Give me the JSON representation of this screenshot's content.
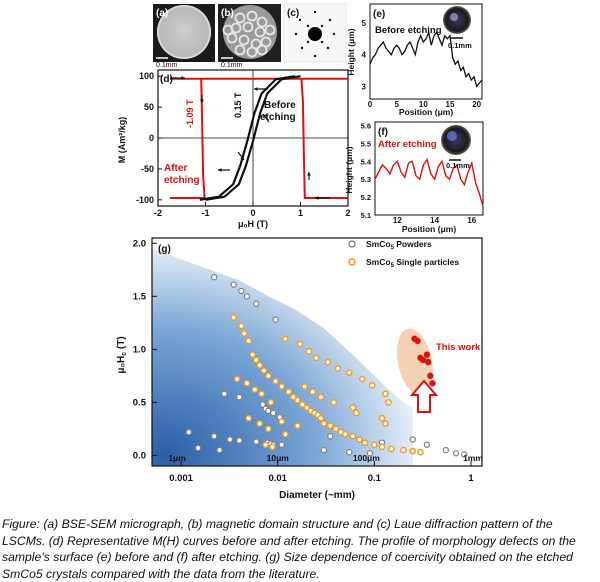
{
  "panels": {
    "a": {
      "label": "(a)",
      "scale": "0.1mm"
    },
    "b": {
      "label": "(b)",
      "scale": "0.1mm"
    },
    "c": {
      "label": "(c)"
    },
    "d": {
      "label": "(d)",
      "ylabel": "M (Am²/kg)",
      "xlabel": "μ₀H (T)",
      "xticks": [
        "-2",
        "-1",
        "0",
        "1",
        "2"
      ],
      "yticks": [
        "100",
        "50",
        "0",
        "-50",
        "-100"
      ],
      "annot_before": "Before",
      "annot_before2": "etching",
      "annot_after": "After",
      "annot_after2": "etching",
      "annot_015": "0.15 T",
      "annot_109": "-1.09 T"
    },
    "e": {
      "label": "(e)",
      "title": "Before etching",
      "scale": "0.1mm",
      "ylabel": "Height (μm)",
      "xlabel": "Position (μm)",
      "xticks": [
        "0",
        "5",
        "10",
        "15",
        "20"
      ],
      "yticks": [
        "5",
        "4",
        "3"
      ]
    },
    "f": {
      "label": "(f)",
      "title": "After etching",
      "scale": "0.1mm",
      "ylabel": "Height (μm)",
      "xlabel": "Position (μm)",
      "xticks": [
        "12",
        "14",
        "16"
      ],
      "yticks": [
        "5.6",
        "5.5",
        "5.4",
        "5.3",
        "5.2",
        "5.1"
      ]
    },
    "g": {
      "label": "(g)",
      "ylabel": "μ₀H",
      "ylabel_sub": "c",
      "ylabel_unit": " (T)",
      "xlabel": "Diameter (~mm)",
      "xticks": [
        "0.001",
        "0.01",
        "0.1",
        "1"
      ],
      "yticks": [
        "2.0",
        "1.5",
        "1.0",
        "0.5",
        "0.0"
      ],
      "size_labels": [
        "1μm",
        "10μm",
        "100μm",
        "1mm"
      ],
      "legend1": "SmCo",
      "legend1_sub": "5",
      "legend1_rest": " Powders",
      "legend2": "SmCo",
      "legend2_sub": "5",
      "legend2_rest": " Single particles",
      "this_work": "This work"
    }
  },
  "colors": {
    "red": "#e01010",
    "orange": "#f39c1f",
    "gray": "#808080",
    "blue": "#2a6cb8"
  },
  "chart_data": [
    {
      "panel": "d",
      "type": "line",
      "xlim": [
        -2,
        2
      ],
      "ylim": [
        -110,
        110
      ],
      "series": [
        {
          "color": "red",
          "x": [
            -1.75,
            -1.13,
            -1.11,
            -1.09,
            -1.0,
            1.0,
            1.09,
            1.11,
            1.13,
            2.0
          ],
          "y_upper": [
            96,
            96,
            60,
            -50,
            -97,
            -97,
            -97,
            -97,
            -97,
            -97
          ],
          "closed": true
        },
        {
          "color": "black",
          "x": [
            -1.0,
            -0.6,
            -0.3,
            -0.15,
            0,
            0.15,
            0.3,
            0.6,
            1.0
          ],
          "y": [
            -100,
            -95,
            -75,
            -45,
            -5,
            40,
            72,
            95,
            100
          ]
        }
      ]
    },
    {
      "panel": "e",
      "type": "line",
      "xlim": [
        0,
        21
      ],
      "ylim": [
        2.6,
        5.6
      ],
      "x": [
        0,
        0.5,
        1,
        1.5,
        2,
        2.5,
        3,
        3.5,
        4,
        4.5,
        5,
        5.5,
        6,
        6.5,
        7,
        7.5,
        8,
        8.5,
        9,
        9.5,
        10,
        10.5,
        11,
        11.5,
        12,
        12.5,
        13,
        13.5,
        14,
        14.5,
        15,
        15.5,
        16,
        16.5,
        17,
        17.5,
        18,
        18.5,
        19,
        19.5,
        20,
        20.5,
        21
      ],
      "y": [
        3.7,
        3.9,
        4.0,
        4.2,
        4.3,
        4.4,
        4.2,
        4.1,
        4.0,
        4.2,
        4.3,
        4.2,
        4.0,
        4.1,
        4.3,
        4.4,
        4.2,
        4.0,
        4.4,
        4.6,
        4.4,
        4.5,
        4.7,
        4.3,
        4.6,
        4.7,
        4.5,
        4.3,
        4.6,
        4.5,
        4.6,
        3.9,
        3.7,
        3.8,
        3.5,
        3.6,
        3.3,
        3.4,
        3.2,
        3.3,
        3.0,
        3.1,
        3.2
      ]
    },
    {
      "panel": "f",
      "type": "line",
      "xlim": [
        10.8,
        16.6
      ],
      "ylim": [
        5.1,
        5.62
      ],
      "x": [
        10.8,
        11.0,
        11.2,
        11.4,
        11.6,
        11.8,
        12.0,
        12.2,
        12.4,
        12.6,
        12.8,
        13.0,
        13.2,
        13.4,
        13.6,
        13.8,
        14.0,
        14.2,
        14.4,
        14.6,
        14.8,
        15.0,
        15.2,
        15.4,
        15.6,
        15.8,
        16.0,
        16.2,
        16.4,
        16.6
      ],
      "y": [
        5.3,
        5.34,
        5.38,
        5.36,
        5.33,
        5.38,
        5.4,
        5.34,
        5.31,
        5.39,
        5.4,
        5.32,
        5.3,
        5.38,
        5.41,
        5.33,
        5.3,
        5.37,
        5.4,
        5.32,
        5.3,
        5.36,
        5.38,
        5.3,
        5.27,
        5.34,
        5.39,
        5.28,
        5.22,
        5.15
      ]
    },
    {
      "panel": "g",
      "type": "scatter",
      "xscale": "log",
      "xlim": [
        0.0005,
        1.3
      ],
      "ylim": [
        -0.1,
        2.05
      ],
      "series": [
        {
          "name": "SmCo5 Powders",
          "color": "gray",
          "x": [
            0.0022,
            0.0035,
            0.0042,
            0.0048,
            0.006,
            0.0095,
            0.0028,
            0.004,
            0.007,
            0.0075,
            0.008,
            0.009,
            0.0105,
            0.0012,
            0.0022,
            0.0032,
            0.004,
            0.006,
            0.0078,
            0.0085,
            0.009,
            0.011,
            0.0015,
            0.0025,
            0.035,
            0.07,
            0.12,
            0.03,
            0.055,
            0.09,
            0.25,
            0.35,
            0.55,
            0.7,
            0.85
          ],
          "y": [
            1.68,
            1.61,
            1.55,
            1.5,
            1.43,
            1.28,
            0.58,
            0.55,
            0.48,
            0.44,
            0.42,
            0.4,
            0.36,
            0.22,
            0.18,
            0.15,
            0.14,
            0.13,
            0.12,
            0.11,
            0.1,
            0.1,
            0.07,
            0.05,
            0.18,
            0.15,
            0.12,
            0.05,
            0.03,
            0.02,
            0.15,
            0.1,
            0.05,
            0.02,
            0.01
          ]
        },
        {
          "name": "SmCo5 Single particles",
          "color": "orange",
          "x": [
            0.0035,
            0.0042,
            0.0045,
            0.005,
            0.0055,
            0.006,
            0.0065,
            0.0072,
            0.008,
            0.0095,
            0.011,
            0.013,
            0.0145,
            0.016,
            0.018,
            0.02,
            0.022,
            0.024,
            0.026,
            0.028,
            0.03,
            0.035,
            0.04,
            0.045,
            0.05,
            0.06,
            0.07,
            0.08,
            0.1,
            0.12,
            0.15,
            0.2,
            0.25,
            0.3,
            0.0038,
            0.0048,
            0.0058,
            0.0068,
            0.0085,
            0.012,
            0.017,
            0.021,
            0.025,
            0.033,
            0.042,
            0.055,
            0.075,
            0.095,
            0.13,
            0.14,
            0.005,
            0.0065,
            0.008,
            0.011,
            0.016,
            0.019,
            0.023,
            0.028,
            0.038,
            0.06,
            0.065,
            0.12,
            0.13,
            0.0075,
            0.0088,
            0.012
          ],
          "y": [
            1.3,
            1.22,
            1.15,
            1.08,
            0.95,
            0.9,
            0.85,
            0.8,
            0.75,
            0.7,
            0.65,
            0.6,
            0.55,
            0.52,
            0.48,
            0.45,
            0.42,
            0.4,
            0.38,
            0.35,
            0.3,
            0.28,
            0.25,
            0.22,
            0.2,
            0.18,
            0.15,
            0.12,
            0.1,
            0.08,
            0.06,
            0.05,
            0.04,
            0.03,
            0.72,
            0.68,
            0.62,
            0.58,
            0.5,
            1.1,
            1.05,
            0.98,
            0.92,
            0.88,
            0.82,
            0.78,
            0.72,
            0.66,
            0.58,
            0.5,
            0.35,
            0.3,
            0.25,
            0.32,
            0.28,
            0.65,
            0.6,
            0.55,
            0.5,
            0.45,
            0.4,
            0.35,
            0.3,
            0.1,
            0.08,
            0.2
          ]
        },
        {
          "name": "This work",
          "color": "red",
          "x": [
            0.26,
            0.28,
            0.3,
            0.32,
            0.35,
            0.36,
            0.38,
            0.4
          ],
          "y": [
            1.1,
            1.08,
            0.92,
            0.9,
            0.95,
            0.88,
            0.75,
            0.68
          ]
        }
      ]
    }
  ],
  "caption": "Figure: (a) BSE-SEM micrograph, (b) magnetic domain structure and (c) Laue diffraction pattern of the LSCMs. (d) Representative M(H) curves before and after etching. The profile of morphology defects on the sample’s surface (e) before and (f) after etching. (g) Size dependence of coercivity obtained on the etched SmCo5 crystals compared with the data from the literature."
}
